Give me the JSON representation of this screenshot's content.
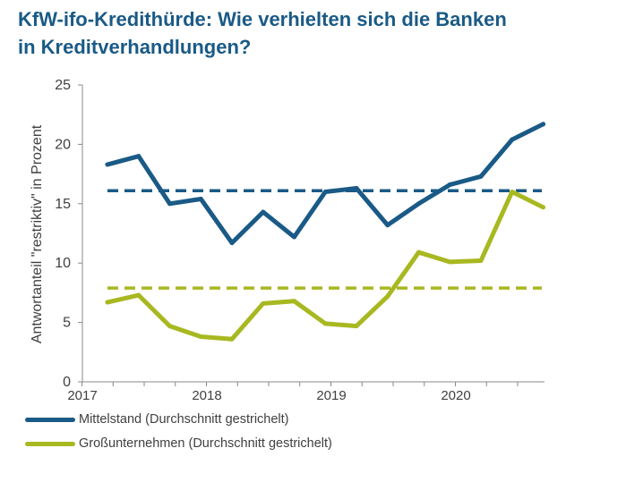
{
  "title": {
    "line1": "KfW-ifo-Kredithürde: Wie verhielten sich die Banken",
    "line2": "in Kreditverhandlungen?"
  },
  "colors": {
    "mittelstand": "#1a5a86",
    "grossunternehmen": "#a8b820",
    "axis": "#888888",
    "text": "#404040",
    "title": "#1a5a86"
  },
  "chart_data": {
    "type": "line",
    "title": "KfW-ifo-Kredithürde: Wie verhielten sich die Banken in Kreditverhandlungen?",
    "ylabel": "Antwortanteil \"restriktiv\" in Prozent",
    "xlabel": "",
    "ylim": [
      0,
      25
    ],
    "yticks": [
      0,
      5,
      10,
      15,
      20,
      25
    ],
    "xticks": [
      "2017",
      "2018",
      "2019",
      "2020"
    ],
    "x": [
      "2017 Q1",
      "2017 Q2",
      "2017 Q3",
      "2017 Q4",
      "2018 Q1",
      "2018 Q2",
      "2018 Q3",
      "2018 Q4",
      "2019 Q1",
      "2019 Q2",
      "2019 Q3",
      "2019 Q4",
      "2020 Q1",
      "2020 Q2",
      "2020 Q3"
    ],
    "grid": false,
    "legend_position": "bottom",
    "series": [
      {
        "name": "Mittelstand (Durchschnitt gestrichelt)",
        "values": [
          18.3,
          19.0,
          15.0,
          15.4,
          11.7,
          14.3,
          12.2,
          16.0,
          16.3,
          13.2,
          15.0,
          16.6,
          17.3,
          20.4,
          21.7
        ],
        "average": 16.1
      },
      {
        "name": "Großunternehmen (Durchschnitt gestrichelt)",
        "values": [
          6.7,
          7.3,
          4.7,
          3.8,
          3.6,
          6.6,
          6.8,
          4.9,
          4.7,
          7.2,
          10.9,
          10.1,
          10.2,
          16.0,
          14.7
        ],
        "average": 7.9
      }
    ]
  }
}
